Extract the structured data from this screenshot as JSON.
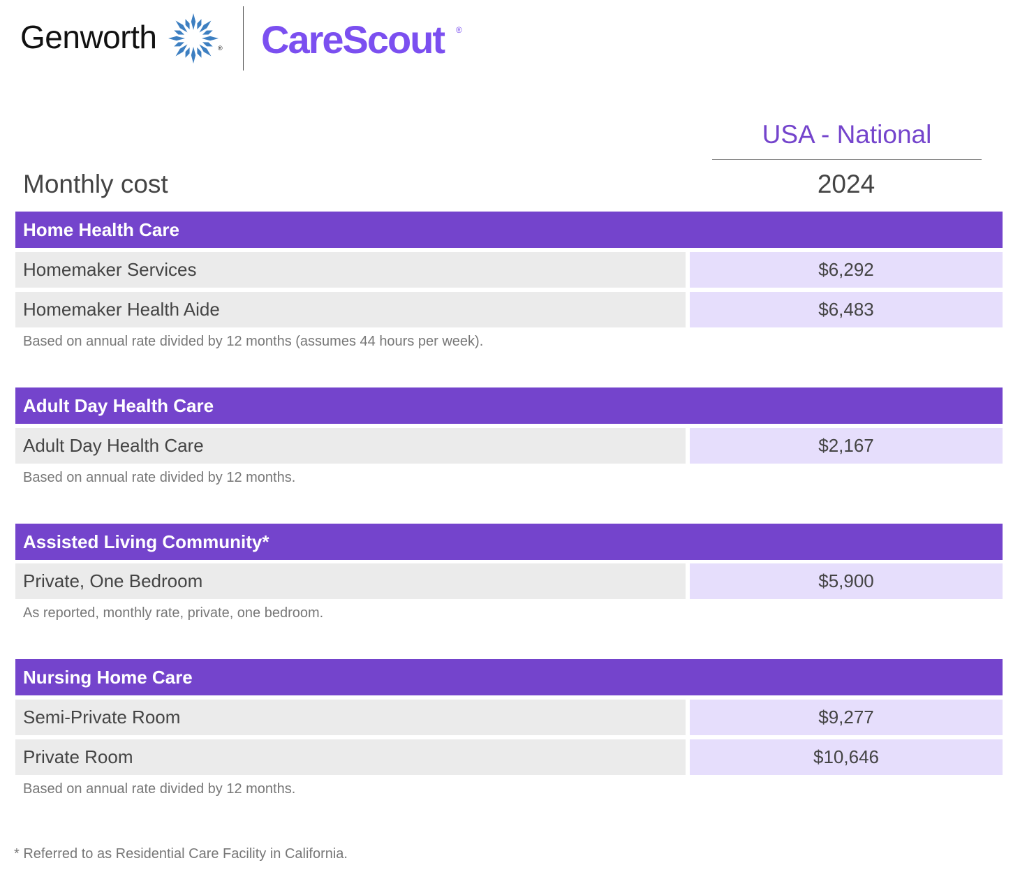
{
  "logos": {
    "genworth": "Genworth",
    "carescout": "CareScout",
    "registered": "®",
    "star_color": "#3d7fc1",
    "carescout_color": "#7b4ff0"
  },
  "header": {
    "row_label": "Monthly cost",
    "region": "USA - National",
    "year": "2024"
  },
  "colors": {
    "section_header": "#7444cc",
    "label_cell": "#ebebeb",
    "value_cell": "#e6defc"
  },
  "sections": [
    {
      "title": "Home Health Care",
      "rows": [
        {
          "label": "Homemaker Services",
          "value": "$6,292"
        },
        {
          "label": "Homemaker Health Aide",
          "value": "$6,483"
        }
      ],
      "note": "Based on annual rate divided by 12 months (assumes 44 hours per week)."
    },
    {
      "title": "Adult Day Health Care",
      "rows": [
        {
          "label": "Adult Day Health Care",
          "value": "$2,167"
        }
      ],
      "note": "Based on annual rate divided by 12 months."
    },
    {
      "title": "Assisted Living Community*",
      "rows": [
        {
          "label": "Private, One Bedroom",
          "value": "$5,900"
        }
      ],
      "note": "As reported, monthly rate, private, one bedroom."
    },
    {
      "title": "Nursing Home Care",
      "rows": [
        {
          "label": "Semi-Private Room",
          "value": "$9,277"
        },
        {
          "label": "Private Room",
          "value": "$10,646"
        }
      ],
      "note": "Based on annual rate divided by 12 months."
    }
  ],
  "footnote": "* Referred to as Residential Care Facility in California."
}
